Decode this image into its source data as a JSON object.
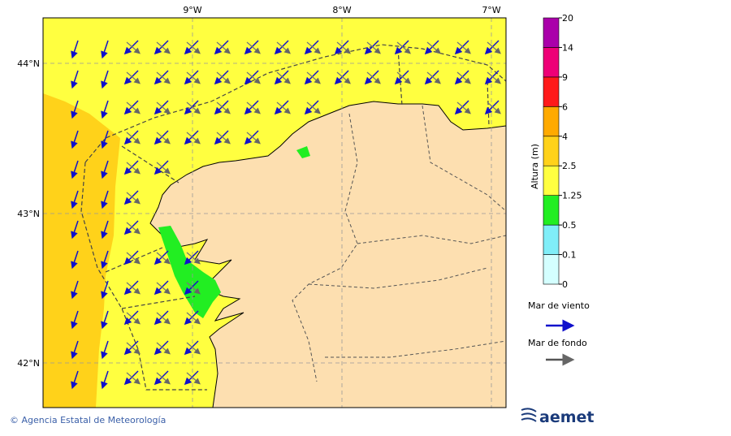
{
  "map": {
    "lon_labels": [
      "9°W",
      "8°W",
      "7°W"
    ],
    "lat_labels": [
      "44°N",
      "43°N",
      "42°N"
    ]
  },
  "colorbar": {
    "title": "Altura (m)",
    "levels": [
      0,
      0.1,
      0.5,
      1.25,
      2.5,
      4,
      6,
      9,
      14,
      20
    ],
    "colors": [
      "#d4ffff",
      "#80eef8",
      "#22ee22",
      "#ffff40",
      "#ffd21a",
      "#ffaa00",
      "#ff1a1a",
      "#ee0077",
      "#aa00aa"
    ]
  },
  "legend": {
    "wind_sea": "Mar de viento",
    "swell": "Mar de fondo"
  },
  "footer": {
    "copyright": "© Agencia Estatal de Meteorología",
    "logo": "aemet"
  }
}
